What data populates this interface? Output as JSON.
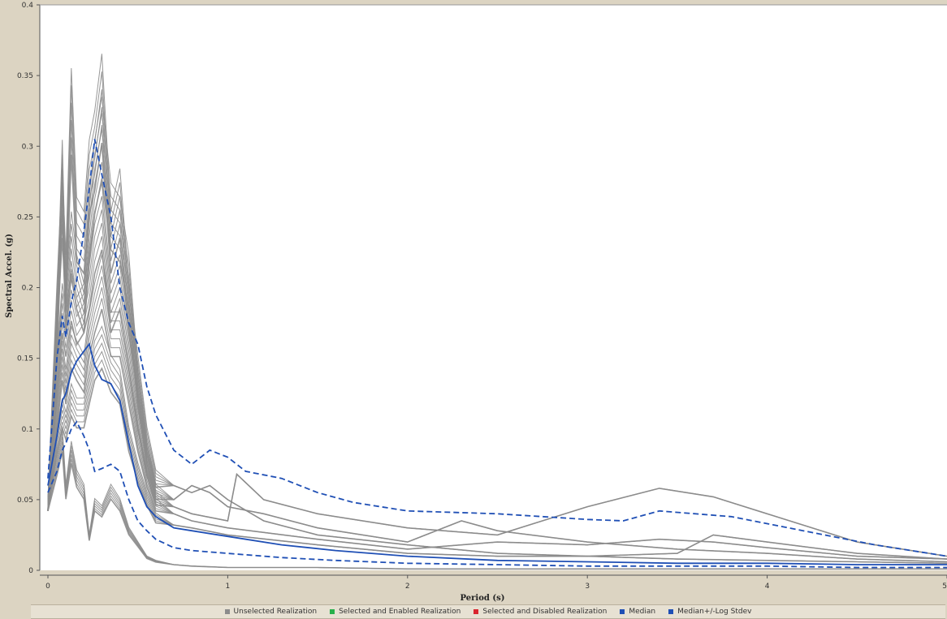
{
  "chart_data": {
    "type": "line",
    "xlabel": "Period (s)",
    "ylabel": "Spectral Accel. (g)",
    "xlim": [
      0,
      5
    ],
    "ylim": [
      0,
      0.4
    ],
    "xticks": [
      0,
      1,
      2,
      3,
      4,
      5
    ],
    "yticks": [
      0,
      0.05,
      0.1,
      0.15,
      0.2,
      0.25,
      0.3,
      0.35,
      0.4
    ],
    "xtick_labels": [
      "0",
      "1",
      "2",
      "3",
      "4",
      "5"
    ],
    "ytick_labels": [
      "0",
      "0.05",
      "0.1",
      "0.15",
      "0.2",
      "0.25",
      "0.3",
      "0.35",
      "0.4"
    ],
    "grid": false,
    "legend_position": "bottom",
    "legend": [
      {
        "label": "Unselected Realization",
        "color": "#8c8c8c"
      },
      {
        "label": "Selected and Enabled Realization",
        "color": "#27b04b"
      },
      {
        "label": "Selected and Disabled Realization",
        "color": "#d9252f"
      },
      {
        "label": "Median",
        "color": "#1f4fb5"
      },
      {
        "label": "Median+/-Log Stdev",
        "color": "#1f4fb5"
      }
    ],
    "series": [
      {
        "name": "Median",
        "style": "solid",
        "color": "#1f4fb5",
        "points": [
          [
            0,
            0.06
          ],
          [
            0.05,
            0.095
          ],
          [
            0.08,
            0.12
          ],
          [
            0.1,
            0.125
          ],
          [
            0.13,
            0.14
          ],
          [
            0.16,
            0.148
          ],
          [
            0.2,
            0.155
          ],
          [
            0.23,
            0.16
          ],
          [
            0.26,
            0.145
          ],
          [
            0.3,
            0.135
          ],
          [
            0.35,
            0.132
          ],
          [
            0.4,
            0.12
          ],
          [
            0.45,
            0.09
          ],
          [
            0.5,
            0.06
          ],
          [
            0.55,
            0.045
          ],
          [
            0.6,
            0.038
          ],
          [
            0.7,
            0.03
          ],
          [
            0.8,
            0.028
          ],
          [
            1.0,
            0.024
          ],
          [
            1.3,
            0.018
          ],
          [
            1.6,
            0.014
          ],
          [
            2.0,
            0.01
          ],
          [
            2.5,
            0.007
          ],
          [
            3.0,
            0.006
          ],
          [
            3.5,
            0.005
          ],
          [
            4.0,
            0.005
          ],
          [
            4.5,
            0.004
          ],
          [
            5.0,
            0.004
          ]
        ]
      },
      {
        "name": "Median+/-Log Stdev (upper)",
        "style": "dashed",
        "color": "#1f4fb5",
        "points": [
          [
            0,
            0.065
          ],
          [
            0.05,
            0.15
          ],
          [
            0.08,
            0.18
          ],
          [
            0.1,
            0.165
          ],
          [
            0.13,
            0.19
          ],
          [
            0.16,
            0.205
          ],
          [
            0.2,
            0.24
          ],
          [
            0.23,
            0.27
          ],
          [
            0.26,
            0.305
          ],
          [
            0.3,
            0.28
          ],
          [
            0.35,
            0.25
          ],
          [
            0.4,
            0.2
          ],
          [
            0.45,
            0.175
          ],
          [
            0.5,
            0.16
          ],
          [
            0.55,
            0.13
          ],
          [
            0.6,
            0.11
          ],
          [
            0.7,
            0.085
          ],
          [
            0.8,
            0.075
          ],
          [
            0.9,
            0.085
          ],
          [
            1.0,
            0.08
          ],
          [
            1.1,
            0.07
          ],
          [
            1.3,
            0.065
          ],
          [
            1.5,
            0.055
          ],
          [
            1.7,
            0.048
          ],
          [
            2.0,
            0.042
          ],
          [
            2.5,
            0.04
          ],
          [
            3.0,
            0.036
          ],
          [
            3.2,
            0.035
          ],
          [
            3.4,
            0.042
          ],
          [
            3.8,
            0.038
          ],
          [
            4.2,
            0.028
          ],
          [
            4.6,
            0.018
          ],
          [
            5.0,
            0.01
          ]
        ]
      },
      {
        "name": "Median+/-Log Stdev (lower)",
        "style": "dashed",
        "color": "#1f4fb5",
        "points": [
          [
            0,
            0.055
          ],
          [
            0.05,
            0.07
          ],
          [
            0.08,
            0.085
          ],
          [
            0.1,
            0.09
          ],
          [
            0.13,
            0.1
          ],
          [
            0.16,
            0.105
          ],
          [
            0.2,
            0.095
          ],
          [
            0.23,
            0.085
          ],
          [
            0.26,
            0.07
          ],
          [
            0.3,
            0.072
          ],
          [
            0.35,
            0.075
          ],
          [
            0.4,
            0.07
          ],
          [
            0.45,
            0.05
          ],
          [
            0.5,
            0.035
          ],
          [
            0.55,
            0.028
          ],
          [
            0.6,
            0.022
          ],
          [
            0.7,
            0.016
          ],
          [
            0.8,
            0.014
          ],
          [
            1.0,
            0.012
          ],
          [
            1.3,
            0.009
          ],
          [
            1.6,
            0.007
          ],
          [
            2.0,
            0.005
          ],
          [
            2.5,
            0.004
          ],
          [
            3.0,
            0.003
          ],
          [
            3.5,
            0.003
          ],
          [
            4.0,
            0.003
          ],
          [
            4.5,
            0.002
          ],
          [
            5.0,
            0.002
          ]
        ]
      }
    ],
    "realizations": [
      {
        "name": "Unselected Realization",
        "color": "#8c8c8c",
        "points": [
          [
            0,
            0.05
          ],
          [
            0.05,
            0.2
          ],
          [
            0.08,
            0.28
          ],
          [
            0.1,
            0.22
          ],
          [
            0.13,
            0.35
          ],
          [
            0.16,
            0.26
          ],
          [
            0.2,
            0.25
          ],
          [
            0.23,
            0.3
          ],
          [
            0.26,
            0.32
          ],
          [
            0.3,
            0.36
          ],
          [
            0.35,
            0.25
          ],
          [
            0.4,
            0.28
          ],
          [
            0.45,
            0.2
          ],
          [
            0.5,
            0.15
          ],
          [
            0.55,
            0.1
          ],
          [
            0.6,
            0.07
          ],
          [
            0.7,
            0.06
          ],
          [
            0.8,
            0.055
          ],
          [
            0.9,
            0.06
          ],
          [
            1.0,
            0.05
          ],
          [
            1.2,
            0.035
          ],
          [
            1.5,
            0.025
          ],
          [
            2.0,
            0.018
          ],
          [
            2.5,
            0.012
          ],
          [
            3.0,
            0.01
          ],
          [
            3.5,
            0.008
          ],
          [
            4.0,
            0.007
          ],
          [
            4.5,
            0.006
          ],
          [
            5.0,
            0.005
          ]
        ]
      },
      {
        "name": "Unselected Realization",
        "color": "#8c8c8c",
        "points": [
          [
            0,
            0.05
          ],
          [
            0.05,
            0.18
          ],
          [
            0.08,
            0.3
          ],
          [
            0.1,
            0.2
          ],
          [
            0.13,
            0.25
          ],
          [
            0.16,
            0.22
          ],
          [
            0.2,
            0.2
          ],
          [
            0.23,
            0.26
          ],
          [
            0.26,
            0.3
          ],
          [
            0.3,
            0.33
          ],
          [
            0.35,
            0.27
          ],
          [
            0.4,
            0.26
          ],
          [
            0.45,
            0.22
          ],
          [
            0.5,
            0.14
          ],
          [
            0.55,
            0.09
          ],
          [
            0.6,
            0.06
          ],
          [
            0.7,
            0.05
          ],
          [
            0.8,
            0.06
          ],
          [
            0.9,
            0.055
          ],
          [
            1.0,
            0.045
          ],
          [
            1.2,
            0.04
          ],
          [
            1.5,
            0.03
          ],
          [
            2.0,
            0.02
          ],
          [
            2.3,
            0.035
          ],
          [
            2.5,
            0.028
          ],
          [
            3.0,
            0.02
          ],
          [
            3.5,
            0.015
          ],
          [
            4.0,
            0.012
          ],
          [
            4.5,
            0.008
          ],
          [
            5.0,
            0.006
          ]
        ]
      },
      {
        "name": "Unselected Realization",
        "color": "#8c8c8c",
        "points": [
          [
            0,
            0.05
          ],
          [
            0.05,
            0.15
          ],
          [
            0.08,
            0.2
          ],
          [
            0.1,
            0.18
          ],
          [
            0.13,
            0.21
          ],
          [
            0.16,
            0.19
          ],
          [
            0.2,
            0.2
          ],
          [
            0.23,
            0.22
          ],
          [
            0.26,
            0.25
          ],
          [
            0.3,
            0.27
          ],
          [
            0.35,
            0.2
          ],
          [
            0.4,
            0.22
          ],
          [
            0.45,
            0.17
          ],
          [
            0.5,
            0.12
          ],
          [
            0.55,
            0.08
          ],
          [
            0.6,
            0.055
          ],
          [
            0.7,
            0.045
          ],
          [
            0.8,
            0.04
          ],
          [
            1.0,
            0.035
          ],
          [
            1.05,
            0.068
          ],
          [
            1.2,
            0.05
          ],
          [
            1.5,
            0.04
          ],
          [
            2.0,
            0.03
          ],
          [
            2.5,
            0.025
          ],
          [
            3.0,
            0.045
          ],
          [
            3.4,
            0.058
          ],
          [
            3.7,
            0.052
          ],
          [
            4.0,
            0.04
          ],
          [
            4.5,
            0.02
          ],
          [
            5.0,
            0.01
          ]
        ]
      },
      {
        "name": "Unselected Realization",
        "color": "#8c8c8c",
        "points": [
          [
            0,
            0.05
          ],
          [
            0.05,
            0.12
          ],
          [
            0.08,
            0.16
          ],
          [
            0.1,
            0.14
          ],
          [
            0.13,
            0.17
          ],
          [
            0.16,
            0.16
          ],
          [
            0.2,
            0.15
          ],
          [
            0.23,
            0.18
          ],
          [
            0.26,
            0.2
          ],
          [
            0.3,
            0.22
          ],
          [
            0.35,
            0.18
          ],
          [
            0.4,
            0.18
          ],
          [
            0.45,
            0.14
          ],
          [
            0.5,
            0.1
          ],
          [
            0.55,
            0.07
          ],
          [
            0.6,
            0.05
          ],
          [
            0.7,
            0.04
          ],
          [
            0.8,
            0.035
          ],
          [
            1.0,
            0.03
          ],
          [
            1.5,
            0.022
          ],
          [
            2.0,
            0.015
          ],
          [
            2.5,
            0.02
          ],
          [
            3.0,
            0.018
          ],
          [
            3.4,
            0.022
          ],
          [
            3.7,
            0.02
          ],
          [
            4.0,
            0.016
          ],
          [
            4.5,
            0.01
          ],
          [
            5.0,
            0.008
          ]
        ]
      },
      {
        "name": "Unselected Realization",
        "color": "#8c8c8c",
        "points": [
          [
            0,
            0.05
          ],
          [
            0.05,
            0.1
          ],
          [
            0.08,
            0.12
          ],
          [
            0.1,
            0.11
          ],
          [
            0.13,
            0.13
          ],
          [
            0.16,
            0.12
          ],
          [
            0.2,
            0.12
          ],
          [
            0.23,
            0.14
          ],
          [
            0.26,
            0.16
          ],
          [
            0.3,
            0.17
          ],
          [
            0.35,
            0.15
          ],
          [
            0.4,
            0.14
          ],
          [
            0.45,
            0.1
          ],
          [
            0.5,
            0.075
          ],
          [
            0.55,
            0.055
          ],
          [
            0.6,
            0.04
          ],
          [
            0.7,
            0.032
          ],
          [
            0.8,
            0.03
          ],
          [
            1.0,
            0.025
          ],
          [
            1.5,
            0.018
          ],
          [
            2.0,
            0.012
          ],
          [
            2.5,
            0.01
          ],
          [
            3.0,
            0.01
          ],
          [
            3.5,
            0.012
          ],
          [
            3.7,
            0.025
          ],
          [
            4.0,
            0.02
          ],
          [
            4.5,
            0.012
          ],
          [
            5.0,
            0.008
          ]
        ]
      },
      {
        "name": "Unselected Realization",
        "color": "#8c8c8c",
        "points": [
          [
            0,
            0.05
          ],
          [
            0.05,
            0.08
          ],
          [
            0.08,
            0.1
          ],
          [
            0.1,
            0.06
          ],
          [
            0.13,
            0.09
          ],
          [
            0.16,
            0.07
          ],
          [
            0.2,
            0.06
          ],
          [
            0.23,
            0.025
          ],
          [
            0.26,
            0.05
          ],
          [
            0.3,
            0.045
          ],
          [
            0.35,
            0.06
          ],
          [
            0.4,
            0.05
          ],
          [
            0.45,
            0.03
          ],
          [
            0.5,
            0.02
          ],
          [
            0.55,
            0.01
          ],
          [
            0.6,
            0.007
          ],
          [
            0.7,
            0.004
          ],
          [
            0.8,
            0.003
          ],
          [
            1.0,
            0.002
          ],
          [
            1.5,
            0.002
          ],
          [
            2.0,
            0.001
          ],
          [
            3.0,
            0.001
          ],
          [
            4.0,
            0.001
          ],
          [
            5.0,
            0.001
          ]
        ]
      }
    ]
  }
}
